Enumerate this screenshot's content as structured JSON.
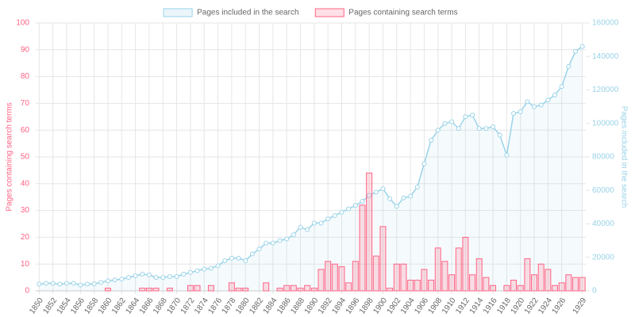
{
  "chart_data": {
    "type": "bar",
    "categories": [
      "1850",
      null,
      "1852",
      null,
      "1854",
      null,
      "1856",
      null,
      "1858",
      null,
      "1860",
      null,
      "1862",
      null,
      "1864",
      null,
      "1866",
      null,
      "1868",
      null,
      "1870",
      null,
      "1872",
      null,
      "1874",
      null,
      "1876",
      null,
      "1878",
      null,
      "1880",
      null,
      "1882",
      null,
      "1884",
      null,
      "1886",
      null,
      "1888",
      null,
      "1890",
      null,
      "1892",
      null,
      "1894",
      null,
      "1896",
      null,
      "1898",
      null,
      "1900",
      null,
      "1902",
      null,
      "1904",
      null,
      "1906",
      null,
      "1908",
      null,
      "1910",
      null,
      "1912",
      null,
      "1914",
      null,
      "1916",
      null,
      "1918",
      null,
      "1920",
      null,
      "1922",
      null,
      "1924",
      null,
      "1926",
      null,
      null,
      "1929"
    ],
    "series": [
      {
        "name": "Pages included in the search",
        "type": "line",
        "axis": "y2",
        "color": "#9ad3e8",
        "values": [
          4000,
          4500,
          4500,
          4000,
          4500,
          4500,
          3500,
          4000,
          4200,
          5000,
          6000,
          6500,
          7000,
          8000,
          9000,
          10000,
          9500,
          8000,
          8000,
          8500,
          8500,
          10000,
          11000,
          12000,
          13000,
          13500,
          15000,
          18000,
          19500,
          19500,
          18000,
          22000,
          25000,
          28500,
          28500,
          30000,
          31000,
          33500,
          38000,
          36500,
          40500,
          40500,
          43000,
          45000,
          47000,
          49000,
          51000,
          53500,
          57000,
          59000,
          61000,
          55000,
          50500,
          55500,
          56500,
          62000,
          76000,
          90000,
          96000,
          100000,
          101000,
          97000,
          104000,
          105000,
          97000,
          97000,
          98000,
          93000,
          81000,
          106000,
          107000,
          113000,
          110000,
          111000,
          114000,
          117000,
          122000,
          134000,
          143000,
          146000
        ]
      },
      {
        "name": "Pages containing search terms",
        "type": "bar",
        "color": "#ff6384",
        "values": [
          0,
          0,
          0,
          0,
          0,
          0,
          0,
          0,
          0,
          0,
          1,
          0,
          0,
          0,
          0,
          1,
          1,
          1,
          0,
          1,
          0,
          0,
          2,
          2,
          0,
          2,
          0,
          0,
          3,
          1,
          1,
          0,
          0,
          3,
          0,
          1,
          2,
          2,
          1,
          2,
          1,
          8,
          11,
          10,
          9,
          3,
          11,
          32,
          44,
          13,
          24,
          1,
          10,
          10,
          4,
          4,
          8,
          4,
          16,
          11,
          6,
          16,
          20,
          6,
          12,
          5,
          2,
          0,
          2,
          4,
          2,
          12,
          6,
          10,
          8,
          2,
          3,
          6,
          5,
          5
        ]
      }
    ],
    "ylabel": "Pages containing search terms",
    "y2label": "Pages included in the search",
    "ylim": [
      0,
      100
    ],
    "yticks": [
      0,
      10,
      20,
      30,
      40,
      50,
      60,
      70,
      80,
      90,
      100
    ],
    "y2lim": [
      0,
      160000
    ],
    "y2ticks": [
      0,
      20000,
      40000,
      60000,
      80000,
      100000,
      120000,
      140000,
      160000
    ],
    "grid": true,
    "legend": "top"
  }
}
